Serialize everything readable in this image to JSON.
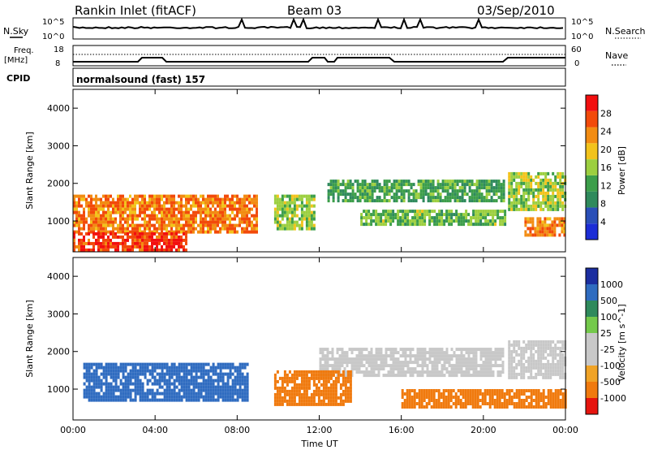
{
  "header": {
    "station": "Rankin Inlet (fitACF)",
    "beam": "Beam 03",
    "date": "03/Sep/2010"
  },
  "strip_labels": {
    "nsky": "N.Sky",
    "nsearch": "N.Search",
    "freq_line1": "Freq.",
    "freq_line2": "[MHz]",
    "nave": "Nave",
    "cpid": "CPID",
    "cpid_value": "normalsound (fast) 157",
    "nsky_ticks": [
      "10^5",
      "10^0"
    ],
    "nsearch_ticks": [
      "10^5",
      "10^0"
    ],
    "freq_ticks": [
      "18",
      "8"
    ],
    "nave_ticks": [
      "60",
      "0"
    ]
  },
  "colors": {
    "power_scale": [
      "#1c2dd6",
      "#2a4fb8",
      "#2f8a5c",
      "#3c9e4a",
      "#9ccf3f",
      "#f2c31b",
      "#f28c12",
      "#f24a0a",
      "#f20f0f"
    ],
    "velocity_scale": [
      "#1b2ea0",
      "#2f6cc0",
      "#2f8a5c",
      "#74c94b",
      "#c8c8c8",
      "#c8c8c8",
      "#f0a326",
      "#f07a0e",
      "#e6140e"
    ]
  },
  "chart_data": [
    {
      "type": "heatmap",
      "panel": "power",
      "xlabel": "",
      "ylabel": "Slant Range [km]",
      "xlim": [
        0,
        24
      ],
      "ylim": [
        180,
        4500
      ],
      "x_ticks": [
        "00:00",
        "04:00",
        "08:00",
        "12:00",
        "16:00",
        "20:00",
        "00:00"
      ],
      "y_ticks": [
        1000,
        2000,
        3000,
        4000
      ],
      "colorbar_label": "Power [dB]",
      "colorbar_ticks": [
        "4",
        "8",
        "12",
        "16",
        "20",
        "24",
        "28"
      ],
      "regions": [
        {
          "t": [
            0.0,
            9.0
          ],
          "r": [
            700,
            1700
          ],
          "value": 24
        },
        {
          "t": [
            0.0,
            5.5
          ],
          "r": [
            200,
            700
          ],
          "value": 28
        },
        {
          "t": [
            9.8,
            11.8
          ],
          "r": [
            800,
            1700
          ],
          "value": 16
        },
        {
          "t": [
            12.4,
            21.0
          ],
          "r": [
            1500,
            2100
          ],
          "value": 12
        },
        {
          "t": [
            14.0,
            21.0
          ],
          "r": [
            900,
            1300
          ],
          "value": 14
        },
        {
          "t": [
            21.2,
            24.0
          ],
          "r": [
            1300,
            2300
          ],
          "value": 16
        },
        {
          "t": [
            22.0,
            24.0
          ],
          "r": [
            600,
            1100
          ],
          "value": 24
        }
      ]
    },
    {
      "type": "heatmap",
      "panel": "velocity",
      "xlabel": "Time UT",
      "ylabel": "Slant Range [km]",
      "xlim": [
        0,
        24
      ],
      "ylim": [
        180,
        4500
      ],
      "x_ticks": [
        "00:00",
        "04:00",
        "08:00",
        "12:00",
        "16:00",
        "20:00",
        "00:00"
      ],
      "y_ticks": [
        1000,
        2000,
        3000,
        4000
      ],
      "colorbar_label": "Velocity [m s^-1]",
      "colorbar_ticks": [
        "1000",
        "500",
        "100",
        "25",
        "-25",
        "-100",
        "-500",
        "-1000"
      ],
      "regions": [
        {
          "t": [
            0.5,
            8.5
          ],
          "r": [
            700,
            1700
          ],
          "value": 300
        },
        {
          "t": [
            12.0,
            21.0
          ],
          "r": [
            1400,
            2100
          ],
          "value": 0
        },
        {
          "t": [
            21.2,
            24.0
          ],
          "r": [
            1300,
            2300
          ],
          "value": 0
        },
        {
          "t": [
            9.8,
            13.5
          ],
          "r": [
            600,
            1500
          ],
          "value": -300
        },
        {
          "t": [
            16.0,
            24.0
          ],
          "r": [
            500,
            1000
          ],
          "value": -300
        }
      ]
    }
  ]
}
